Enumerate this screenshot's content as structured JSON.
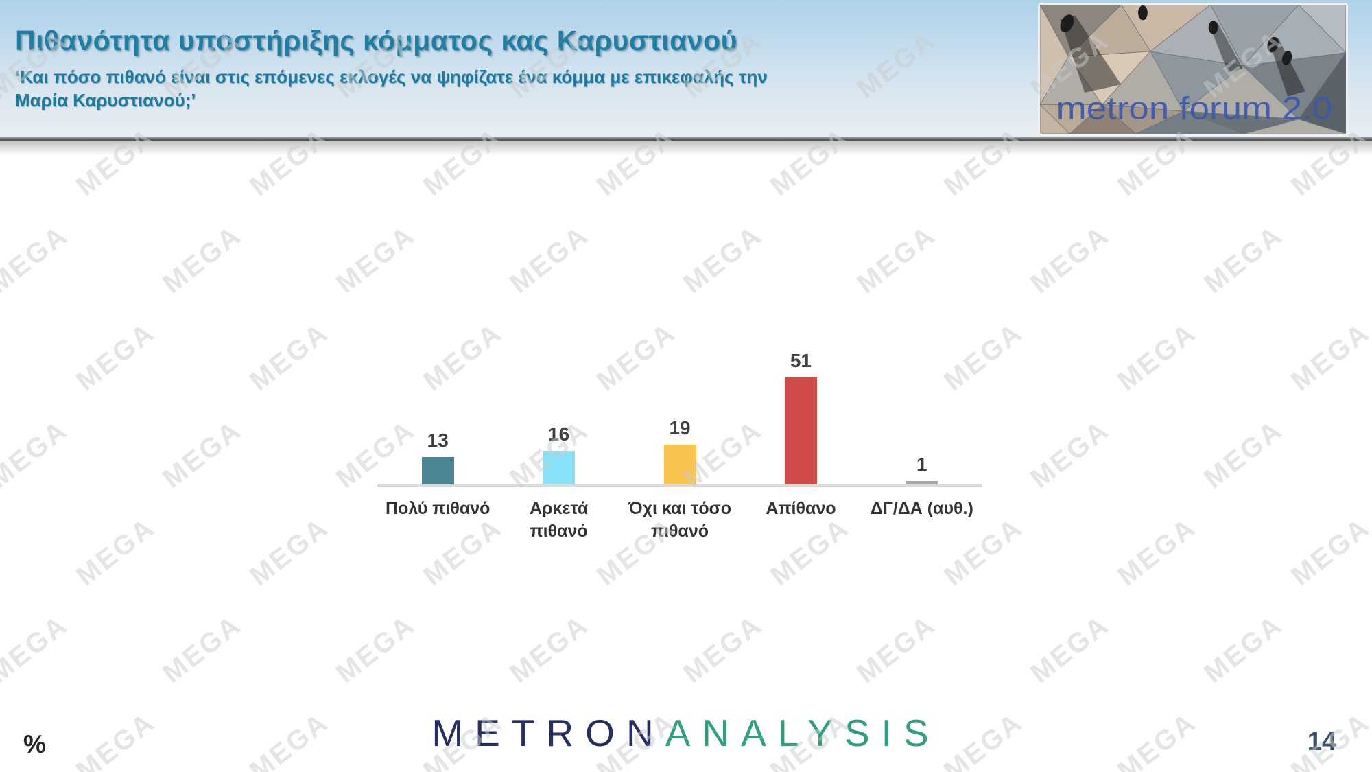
{
  "header": {
    "title": "Πιθανότητα υποστήριξης κόμματος κας Καρυστιανού",
    "subtitle": "‘Και πόσο πιθανό είναι στις επόμενες εκλογές να ψηφίζατε ένα κόμμα με επικεφαλής την Μαρία Καρυστιανού;’",
    "logo_caption": "metron forum 2.0"
  },
  "chart_data": {
    "type": "bar",
    "title": "Πιθανότητα υποστήριξης κόμματος κας Καρυστιανού",
    "categories": [
      "Πολύ πιθανό",
      "Αρκετά πιθανό",
      "Όχι και τόσο πιθανό",
      "Απίθανο",
      "ΔΓ/ΔΑ (αυθ.)"
    ],
    "values": [
      13,
      16,
      19,
      51,
      1
    ],
    "bar_colors": [
      "#4d8596",
      "#87e1f7",
      "#fac34d",
      "#d24b4b",
      "#a8a8a8"
    ],
    "unit": "%",
    "xlabel": "",
    "ylabel": "",
    "ylim": [
      0,
      55
    ],
    "grid": false,
    "data_labels": true,
    "legend": false
  },
  "footer": {
    "logo_part1": "METRON",
    "logo_part2": "ANALYSIS",
    "unit_symbol": "%",
    "page_number": "14"
  },
  "watermark": {
    "text": "MEGA"
  }
}
